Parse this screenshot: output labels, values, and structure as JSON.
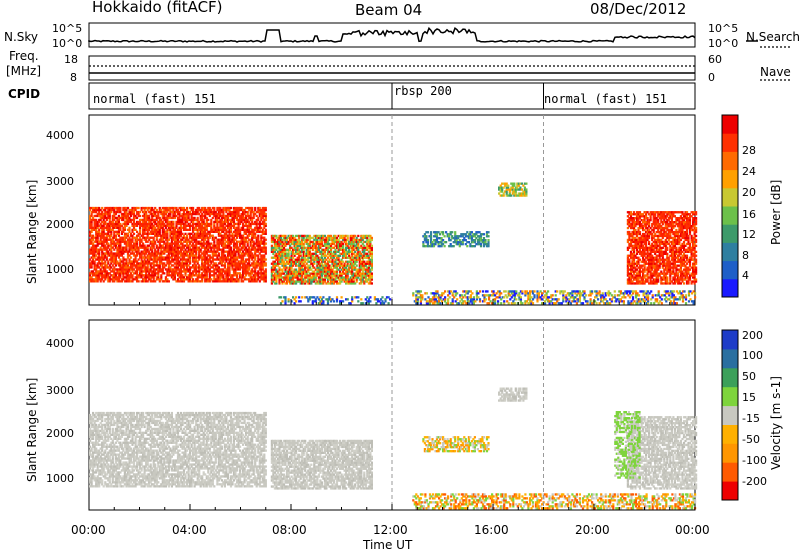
{
  "header": {
    "station": "Hokkaido (fitACF)",
    "beam": "Beam 04",
    "date": "08/Dec/2012"
  },
  "left_labels": {
    "nsky": "N.Sky",
    "freq_line1": "Freq.",
    "freq_line2": "[MHz]",
    "cpid": "CPID"
  },
  "right_labels": {
    "nsearch": "N.Search",
    "nave": "Nave"
  },
  "noise_axis": {
    "left_top": "10^5",
    "left_bottom": "10^0",
    "right_top": "10^5",
    "right_bottom": "10^0"
  },
  "freq_axis": {
    "left_top": "18",
    "left_bottom": "8",
    "right_top": "60",
    "right_bottom": "0"
  },
  "cpid_segments": [
    {
      "label": "normal (fast) 151",
      "start_hour": 0,
      "end_hour": 12
    },
    {
      "label": "rbsp 200",
      "start_hour": 12,
      "end_hour": 18
    },
    {
      "label": "normal (fast) 151",
      "start_hour": 18,
      "end_hour": 24
    }
  ],
  "chart_data": [
    {
      "type": "heatmap",
      "name": "power",
      "ylabel": "Slant Range [km]",
      "yticks": [
        "1000",
        "2000",
        "3000",
        "4000"
      ],
      "ylim": [
        180,
        4500
      ],
      "colorbar_label": "Power [dB]",
      "colorbar_ticks": [
        "4",
        "8",
        "12",
        "16",
        "20",
        "24",
        "28"
      ],
      "colorbar_colors": [
        "#1a1aff",
        "#1f5fc8",
        "#2f7fa0",
        "#3d9a6a",
        "#6cc04a",
        "#c8c832",
        "#ffa000",
        "#ff6a00",
        "#ff3000",
        "#ee0000"
      ]
    },
    {
      "type": "heatmap",
      "name": "velocity",
      "ylabel": "Slant Range [km]",
      "yticks": [
        "1000",
        "2000",
        "3000",
        "4000"
      ],
      "ylim": [
        180,
        4500
      ],
      "colorbar_label": "Velocity [m s-1]",
      "colorbar_ticks": [
        "-200",
        "-100",
        "-50",
        "-15",
        "15",
        "50",
        "100",
        "200"
      ],
      "colorbar_colors": [
        "#ee0000",
        "#ff5a00",
        "#ff9600",
        "#ffb000",
        "#c8c8c0",
        "#7ed43c",
        "#3ca05a",
        "#2a6fa0",
        "#1e3cc8"
      ]
    }
  ],
  "x_axis": {
    "ticks": [
      "00:00",
      "04:00",
      "08:00",
      "12:00",
      "16:00",
      "20:00",
      "00:00"
    ],
    "label": "Time UT"
  }
}
